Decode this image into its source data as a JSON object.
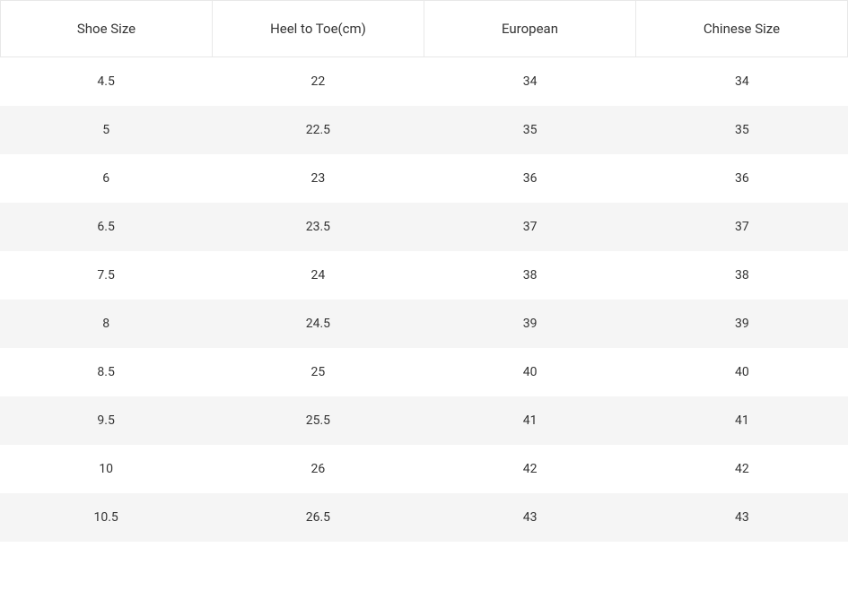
{
  "table": {
    "type": "table",
    "columns": [
      "Shoe Size",
      "Heel to Toe(cm)",
      "European",
      "Chinese Size"
    ],
    "rows": [
      [
        "4.5",
        "22",
        "34",
        "34"
      ],
      [
        "5",
        "22.5",
        "35",
        "35"
      ],
      [
        "6",
        "23",
        "36",
        "36"
      ],
      [
        "6.5",
        "23.5",
        "37",
        "37"
      ],
      [
        "7.5",
        "24",
        "38",
        "38"
      ],
      [
        "8",
        "24.5",
        "39",
        "39"
      ],
      [
        "8.5",
        "25",
        "40",
        "40"
      ],
      [
        "9.5",
        "25.5",
        "41",
        "41"
      ],
      [
        "10",
        "26",
        "42",
        "42"
      ],
      [
        "10.5",
        "26.5",
        "43",
        "43"
      ]
    ],
    "header_background": "#ffffff",
    "header_border_color": "#e8e8e8",
    "header_text_color": "#333333",
    "header_fontsize": 15,
    "row_odd_background": "#ffffff",
    "row_even_background": "#f5f5f5",
    "cell_text_color": "#333333",
    "cell_fontsize": 14,
    "column_alignment": [
      "center",
      "center",
      "center",
      "center"
    ]
  }
}
